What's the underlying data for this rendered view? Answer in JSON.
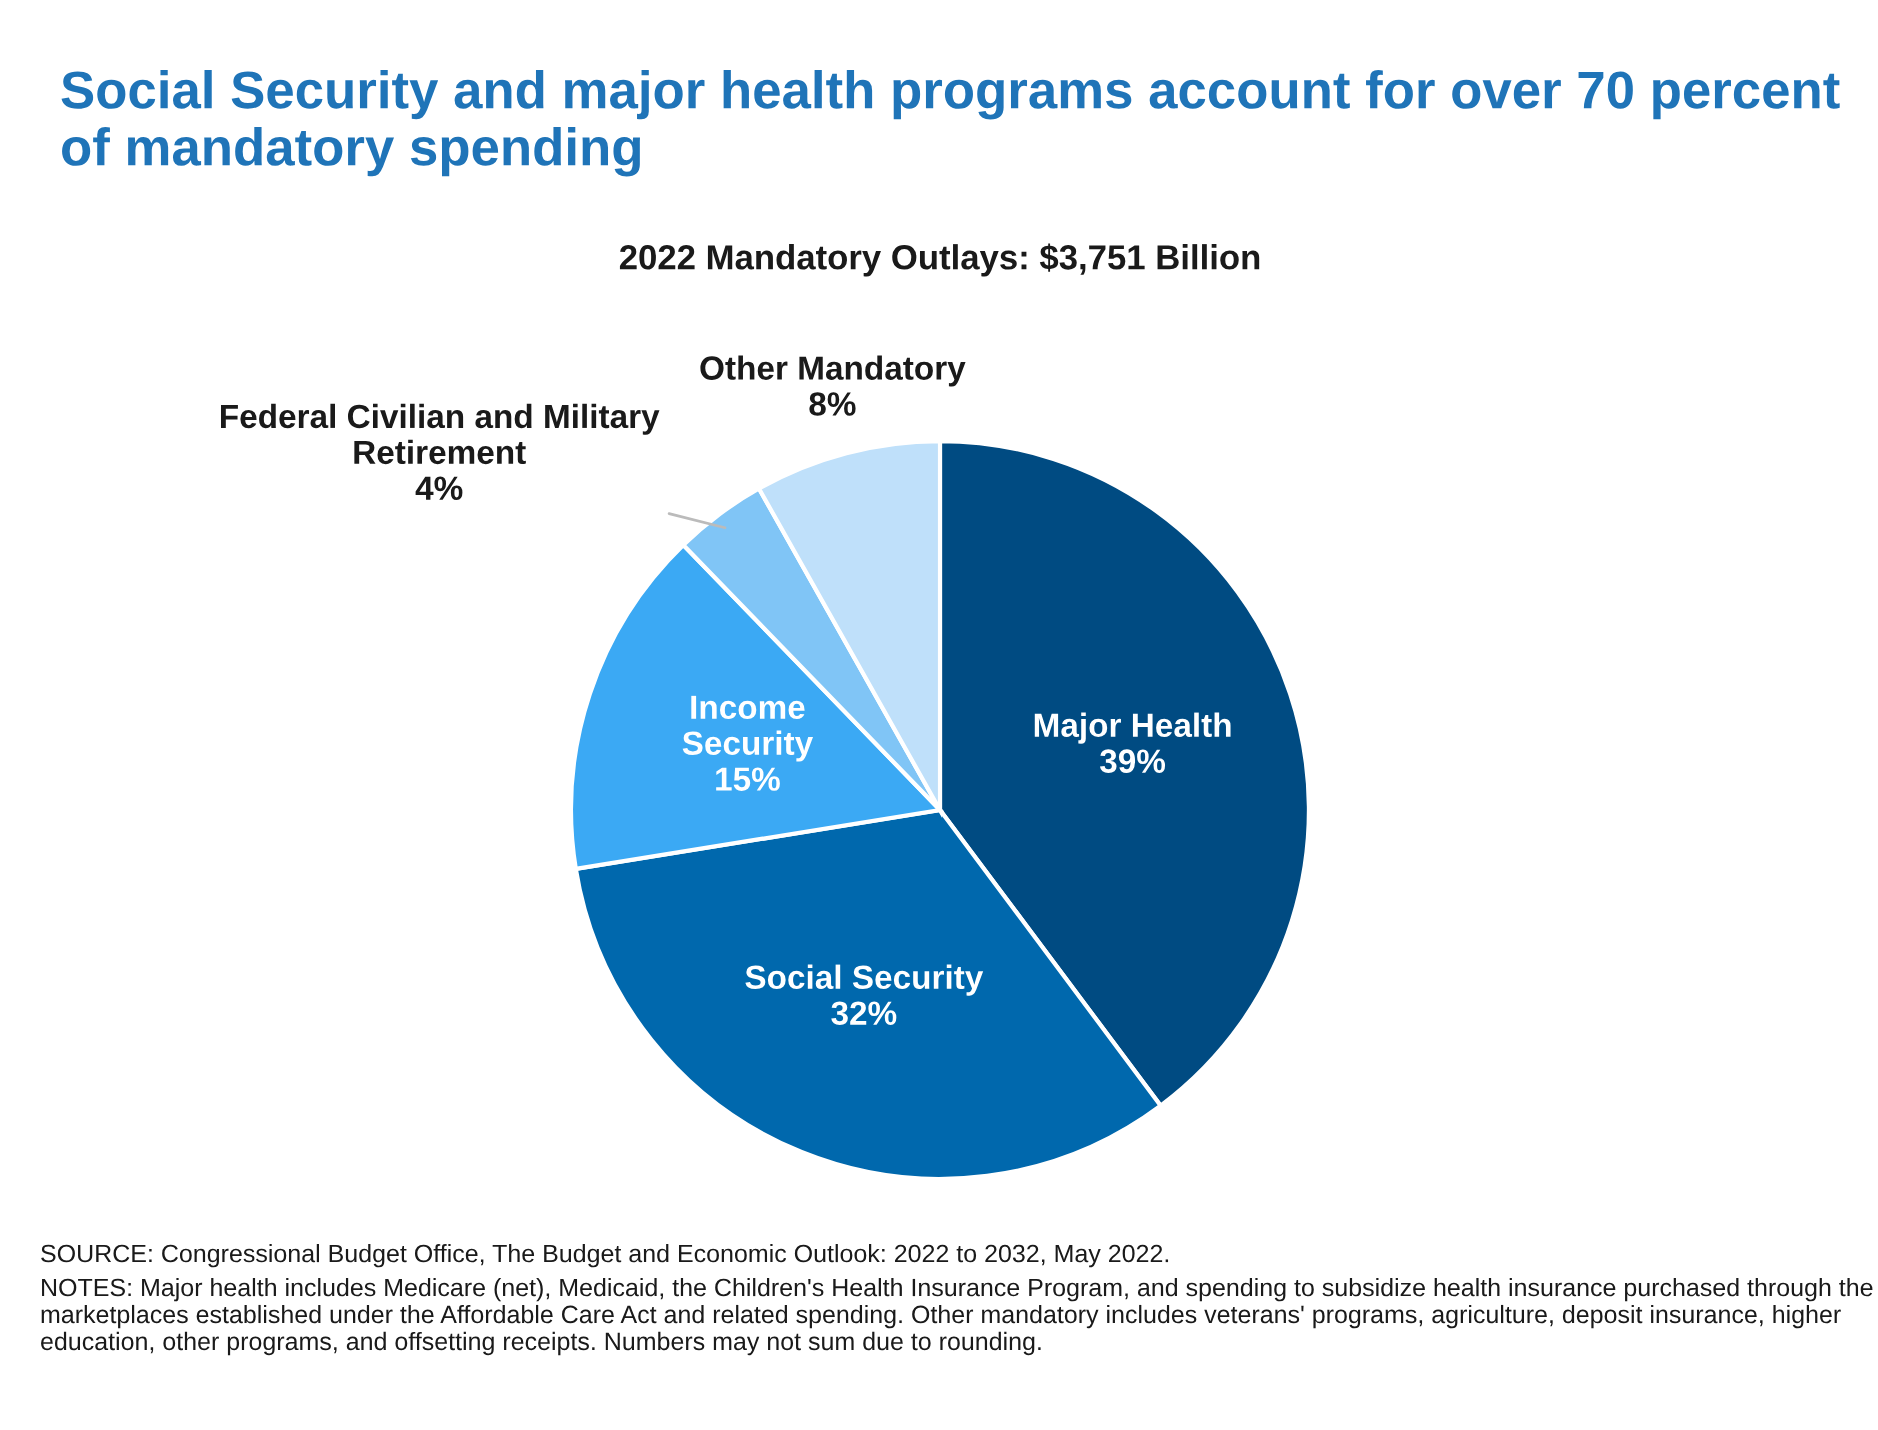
{
  "chart_data": {
    "type": "pie",
    "title": "Social Security and major health programs account for over 70 percent of mandatory spending",
    "subtitle": "2022 Mandatory Outlays: $3,751 Billion",
    "categories": [
      "Major Health",
      "Social Security",
      "Income\nSecurity",
      "Federal Civilian and Military\nRetirement",
      "Other Mandatory"
    ],
    "values": [
      39,
      32,
      15,
      4,
      8
    ],
    "value_labels": [
      "39%",
      "32%",
      "15%",
      "4%",
      "8%"
    ],
    "colors": [
      "#004b82",
      "#0068ad",
      "#3ba9f4",
      "#80c5f6",
      "#bfe0fa"
    ],
    "legend": false,
    "annotations": [
      "SOURCE: Congressional Budget Office, The Budget and Economic Outlook: 2022 to 2032, May 2022.",
      "NOTES: Major health includes Medicare (net), Medicaid, the Children's Health Insurance Program, and spending to subsidize health insurance purchased through the marketplaces established under the Affordable Care Act and related spending. Other mandatory includes veterans' programs, agriculture, deposit insurance, higher education, other programs, and offsetting receipts. Numbers may not sum due to rounding."
    ]
  }
}
